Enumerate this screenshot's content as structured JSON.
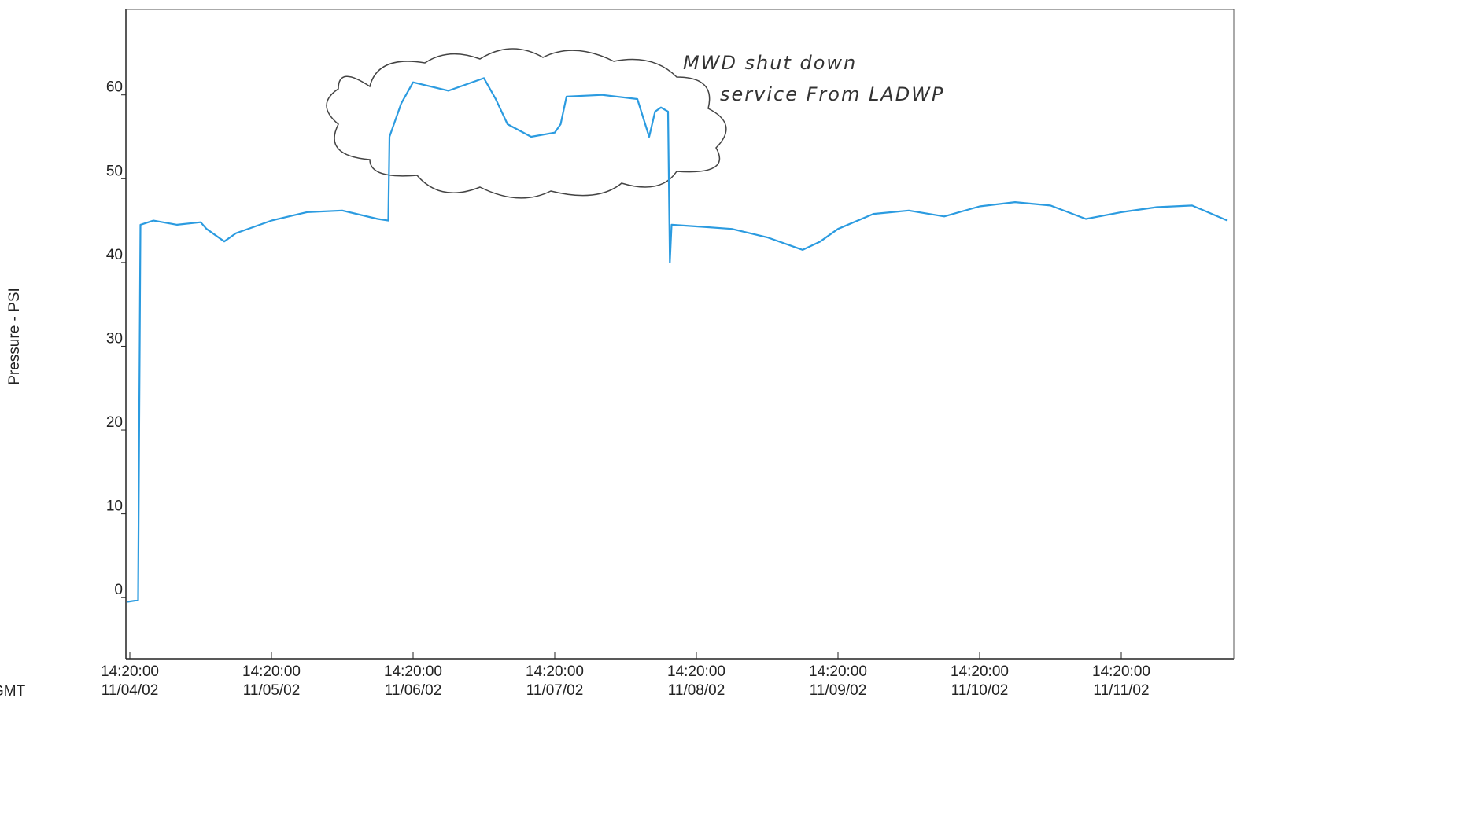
{
  "chart_data": {
    "type": "line",
    "y_label": "Pressure - PSI",
    "x_label": "GMT",
    "annotations": [
      "MWD shut down",
      "service From LADWP"
    ],
    "ylim": [
      -7.3,
      70.2
    ],
    "yticks": [
      0,
      10,
      20,
      30,
      40,
      50,
      60
    ],
    "xlim": [
      "11/04/02 13:40:00",
      "11/12/02 09:24:00"
    ],
    "xticks": [
      {
        "value": "11/04/02 14:20:00",
        "label": [
          "14:20:00",
          "11/04/02"
        ]
      },
      {
        "value": "11/05/02 14:20:00",
        "label": [
          "14:20:00",
          "11/05/02"
        ]
      },
      {
        "value": "11/06/02 14:20:00",
        "label": [
          "14:20:00",
          "11/06/02"
        ]
      },
      {
        "value": "11/07/02 14:20:00",
        "label": [
          "14:20:00",
          "11/07/02"
        ]
      },
      {
        "value": "11/08/02 14:20:00",
        "label": [
          "14:20:00",
          "11/08/02"
        ]
      },
      {
        "value": "11/09/02 14:20:00",
        "label": [
          "14:20:00",
          "11/09/02"
        ]
      },
      {
        "value": "11/10/02 14:20:00",
        "label": [
          "14:20:00",
          "11/10/02"
        ]
      },
      {
        "value": "11/11/02 14:20:00",
        "label": [
          "14:20:00",
          "11/11/02"
        ]
      }
    ],
    "color": "#2b9be0",
    "x": [
      "11/04/02 13:56:00",
      "11/04/02 15:44:00",
      "11/04/02 16:08:00",
      "11/04/02 18:20:00",
      "11/04/02 22:20:00",
      "11/05/02 02:20:00",
      "11/05/02 03:20:00",
      "11/05/02 06:20:00",
      "11/05/02 08:20:00",
      "11/05/02 14:20:00",
      "11/05/02 20:20:00",
      "11/06/02 02:20:00",
      "11/06/02 08:20:00",
      "11/06/02 10:08:00",
      "11/06/02 10:20:00",
      "11/06/02 12:20:00",
      "11/06/02 14:20:00",
      "11/06/02 20:20:00",
      "11/07/02 02:20:00",
      "11/07/02 04:20:00",
      "11/07/02 06:20:00",
      "11/07/02 10:20:00",
      "11/07/02 14:20:00",
      "11/07/02 15:20:00",
      "11/07/02 16:20:00",
      "11/07/02 22:20:00",
      "11/08/02 04:20:00",
      "11/08/02 06:20:00",
      "11/08/02 07:20:00",
      "11/08/02 08:20:00",
      "11/08/02 09:32:00",
      "11/08/02 09:50:00",
      "11/08/02 10:08:00",
      "11/08/02 14:20:00",
      "11/08/02 20:20:00",
      "11/09/02 02:20:00",
      "11/09/02 08:20:00",
      "11/09/02 11:20:00",
      "11/09/02 14:20:00",
      "11/09/02 20:20:00",
      "11/10/02 02:20:00",
      "11/10/02 08:20:00",
      "11/10/02 14:20:00",
      "11/10/02 20:20:00",
      "11/11/02 02:20:00",
      "11/11/02 08:20:00",
      "11/11/02 14:20:00",
      "11/11/02 20:20:00",
      "11/12/02 02:20:00",
      "11/12/02 08:20:00"
    ],
    "values": [
      -0.5,
      -0.3,
      44.5,
      45,
      44.5,
      44.8,
      44,
      42.5,
      43.5,
      45,
      46,
      46.2,
      45.2,
      45,
      55,
      59,
      61.5,
      60.5,
      62,
      59.5,
      56.5,
      55,
      55.5,
      56.5,
      59.8,
      60,
      59.5,
      55,
      58,
      58.5,
      58,
      40,
      44.5,
      44.3,
      44,
      43,
      41.5,
      42.5,
      44,
      45.8,
      46.2,
      45.5,
      46.7,
      47.2,
      46.8,
      45.2,
      46,
      46.6,
      46.8,
      45
    ]
  }
}
